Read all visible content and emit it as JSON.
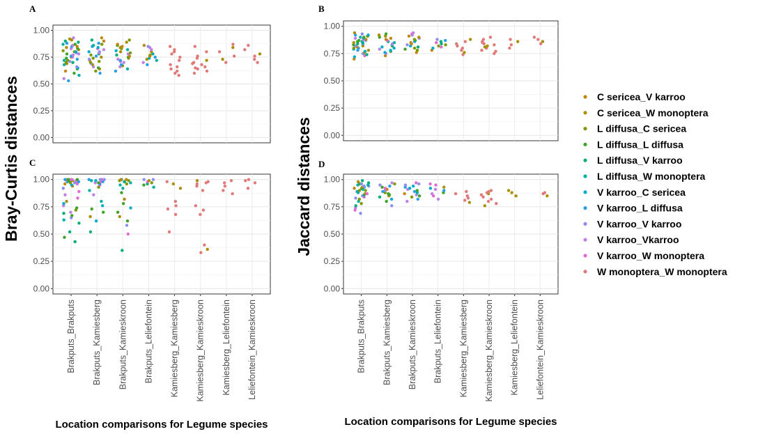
{
  "chart_data": {
    "type": "scatter",
    "style": "jitter strip plot, four panels in a 2x2 grid",
    "locations": [
      "Brakputs_Brakputs",
      "Brakputs_Kamiesberg",
      "Brakputs_Kamieskroon",
      "Brakputs_Leliefontein",
      "Kamiesberg_Kamiesberg",
      "Kamiesberg_Kamieskroon",
      "Kamiesberg_Leliefontein",
      "Leliefontein_Kamieskroon"
    ],
    "y_ticks": [
      "0.00",
      "0.25",
      "0.50",
      "0.75",
      "1.00"
    ],
    "ylim": [
      0,
      1
    ],
    "xlabel_left": "Location comparisons for Legume species",
    "xlabel_right": "Location comparisons for Legume species",
    "ylabel_left": "Bray-Curtis distances",
    "ylabel_right": "Jaccard distances",
    "legend": [
      {
        "label": "C sericea_V karroo",
        "color": "#C0860D"
      },
      {
        "label": "C sericea_W monoptera",
        "color": "#A98E00"
      },
      {
        "label": "L diffusa_C sericea",
        "color": "#7D9A00"
      },
      {
        "label": "L diffusa_L diffusa",
        "color": "#3DA329"
      },
      {
        "label": "L diffusa_V karroo",
        "color": "#00AD78"
      },
      {
        "label": "L diffusa_W monoptera",
        "color": "#00AFA5"
      },
      {
        "label": "V karroo_C sericea",
        "color": "#00ACCB"
      },
      {
        "label": "V karroo_L diffusa",
        "color": "#2B9FE6"
      },
      {
        "label": "V karroo_V karroo",
        "color": "#8C8FF0"
      },
      {
        "label": "V karroo_Vkarroo",
        "color": "#C27FE6"
      },
      {
        "label": "V karroo_W monoptera",
        "color": "#E06BD0"
      },
      {
        "label": "W monoptera_W monoptera",
        "color": "#E07A78"
      }
    ],
    "panels": [
      {
        "id": "A",
        "metric": "Bray-Curtis",
        "groups": [
          {
            "location": "Brakputs_Brakputs",
            "values": [
              0.53,
              0.55,
              0.58,
              0.6,
              0.62,
              0.64,
              0.65,
              0.66,
              0.68,
              0.69,
              0.7,
              0.7,
              0.71,
              0.72,
              0.72,
              0.73,
              0.74,
              0.75,
              0.75,
              0.76,
              0.77,
              0.78,
              0.78,
              0.79,
              0.8,
              0.8,
              0.81,
              0.82,
              0.83,
              0.83,
              0.84,
              0.85,
              0.85,
              0.86,
              0.87,
              0.87,
              0.88,
              0.89,
              0.9,
              0.91,
              0.92,
              0.93
            ]
          },
          {
            "location": "Brakputs_Kamiesberg",
            "values": [
              0.6,
              0.62,
              0.64,
              0.65,
              0.66,
              0.68,
              0.69,
              0.7,
              0.71,
              0.72,
              0.73,
              0.74,
              0.75,
              0.76,
              0.77,
              0.78,
              0.79,
              0.8,
              0.8,
              0.82,
              0.83,
              0.84,
              0.85,
              0.86,
              0.87,
              0.88,
              0.9,
              0.91,
              0.93
            ]
          },
          {
            "location": "Brakputs_Kamieskroon",
            "values": [
              0.62,
              0.64,
              0.66,
              0.67,
              0.68,
              0.7,
              0.71,
              0.72,
              0.73,
              0.74,
              0.75,
              0.76,
              0.77,
              0.78,
              0.79,
              0.8,
              0.81,
              0.82,
              0.83,
              0.84,
              0.85,
              0.86,
              0.87,
              0.89,
              0.91
            ]
          },
          {
            "location": "Brakputs_Leliefontein",
            "values": [
              0.68,
              0.7,
              0.72,
              0.73,
              0.74,
              0.75,
              0.76,
              0.77,
              0.78,
              0.8,
              0.82,
              0.84,
              0.85,
              0.86
            ]
          },
          {
            "location": "Kamiesberg_Kamiesberg",
            "values": [
              0.58,
              0.6,
              0.62,
              0.64,
              0.66,
              0.68,
              0.72,
              0.75,
              0.78,
              0.8,
              0.82,
              0.85
            ]
          },
          {
            "location": "Kamiesberg_Kamieskroon",
            "values": [
              0.6,
              0.62,
              0.64,
              0.65,
              0.66,
              0.68,
              0.69,
              0.7,
              0.72,
              0.74,
              0.76,
              0.8,
              0.85
            ]
          },
          {
            "location": "Kamiesberg_Leliefontein",
            "values": [
              0.7,
              0.73,
              0.76,
              0.8,
              0.84,
              0.87
            ]
          },
          {
            "location": "Leliefontein_Kamieskroon",
            "values": [
              0.7,
              0.73,
              0.76,
              0.78,
              0.82,
              0.86
            ]
          }
        ]
      },
      {
        "id": "B",
        "metric": "Jaccard",
        "groups": [
          {
            "location": "Brakputs_Brakputs",
            "values": [
              0.7,
              0.72,
              0.73,
              0.74,
              0.75,
              0.76,
              0.77,
              0.78,
              0.78,
              0.79,
              0.8,
              0.8,
              0.81,
              0.82,
              0.82,
              0.83,
              0.84,
              0.84,
              0.85,
              0.85,
              0.86,
              0.86,
              0.87,
              0.87,
              0.88,
              0.88,
              0.89,
              0.89,
              0.9,
              0.9,
              0.91,
              0.91,
              0.92,
              0.92,
              0.93,
              0.94
            ]
          },
          {
            "location": "Brakputs_Kamiesberg",
            "values": [
              0.73,
              0.75,
              0.76,
              0.77,
              0.78,
              0.79,
              0.8,
              0.81,
              0.82,
              0.83,
              0.84,
              0.85,
              0.86,
              0.87,
              0.88,
              0.89,
              0.9,
              0.91,
              0.92,
              0.93
            ]
          },
          {
            "location": "Brakputs_Kamieskroon",
            "values": [
              0.76,
              0.78,
              0.79,
              0.8,
              0.81,
              0.82,
              0.83,
              0.84,
              0.85,
              0.86,
              0.87,
              0.88,
              0.89,
              0.9,
              0.91,
              0.92,
              0.93,
              0.94
            ]
          },
          {
            "location": "Brakputs_Leliefontein",
            "values": [
              0.78,
              0.8,
              0.81,
              0.82,
              0.83,
              0.84,
              0.85,
              0.86,
              0.87,
              0.88
            ]
          },
          {
            "location": "Kamiesberg_Kamiesberg",
            "values": [
              0.74,
              0.76,
              0.78,
              0.8,
              0.82,
              0.84,
              0.86,
              0.88
            ]
          },
          {
            "location": "Kamiesberg_Kamieskroon",
            "values": [
              0.75,
              0.77,
              0.78,
              0.8,
              0.81,
              0.82,
              0.83,
              0.84,
              0.85,
              0.86,
              0.88,
              0.9
            ]
          },
          {
            "location": "Kamiesberg_Leliefontein",
            "values": [
              0.8,
              0.83,
              0.86,
              0.88
            ]
          },
          {
            "location": "Leliefontein_Kamieskroon",
            "values": [
              0.84,
              0.86,
              0.88,
              0.9
            ]
          }
        ]
      },
      {
        "id": "C",
        "metric": "Bray-Curtis",
        "groups": [
          {
            "location": "Brakputs_Brakputs",
            "values": [
              0.43,
              0.47,
              0.52,
              0.6,
              0.63,
              0.65,
              0.67,
              0.69,
              0.7,
              0.72,
              0.74,
              0.76,
              0.78,
              0.8,
              0.83,
              0.86,
              0.89,
              0.92,
              0.94,
              0.95,
              0.96,
              0.96,
              0.97,
              0.97,
              0.97,
              0.98,
              0.98,
              0.98,
              0.98,
              0.99,
              0.99,
              0.99,
              0.99,
              1.0,
              1.0,
              1.0,
              1.0,
              1.0,
              1.0,
              1.0
            ]
          },
          {
            "location": "Brakputs_Kamiesberg",
            "values": [
              0.52,
              0.62,
              0.66,
              0.7,
              0.73,
              0.76,
              0.8,
              0.86,
              0.9,
              0.93,
              0.95,
              0.96,
              0.97,
              0.97,
              0.98,
              0.98,
              0.99,
              0.99,
              1.0,
              1.0,
              1.0,
              1.0
            ]
          },
          {
            "location": "Brakputs_Kamieskroon",
            "values": [
              0.35,
              0.5,
              0.58,
              0.62,
              0.66,
              0.7,
              0.74,
              0.78,
              0.82,
              0.88,
              0.92,
              0.95,
              0.96,
              0.97,
              0.98,
              0.98,
              0.99,
              0.99,
              1.0,
              1.0,
              1.0
            ]
          },
          {
            "location": "Brakputs_Leliefontein",
            "values": [
              0.93,
              0.95,
              0.96,
              0.97,
              0.98,
              0.99,
              1.0,
              1.0
            ]
          },
          {
            "location": "Kamiesberg_Kamiesberg",
            "values": [
              0.52,
              0.68,
              0.73,
              0.76,
              0.8,
              0.92,
              0.96,
              0.98
            ]
          },
          {
            "location": "Kamiesberg_Kamieskroon",
            "values": [
              0.33,
              0.36,
              0.4,
              0.68,
              0.72,
              0.76,
              0.9,
              0.94,
              0.96,
              0.97,
              0.98,
              0.99
            ]
          },
          {
            "location": "Kamiesberg_Leliefontein",
            "values": [
              0.87,
              0.9,
              0.94,
              0.97,
              0.99
            ]
          },
          {
            "location": "Leliefontein_Kamieskroon",
            "values": [
              0.92,
              0.97,
              0.99,
              1.0
            ]
          }
        ]
      },
      {
        "id": "D",
        "metric": "Jaccard",
        "groups": [
          {
            "location": "Brakputs_Brakputs",
            "values": [
              0.69,
              0.72,
              0.74,
              0.76,
              0.78,
              0.8,
              0.82,
              0.83,
              0.84,
              0.85,
              0.86,
              0.87,
              0.87,
              0.88,
              0.89,
              0.89,
              0.9,
              0.9,
              0.91,
              0.92,
              0.92,
              0.93,
              0.93,
              0.94,
              0.94,
              0.95,
              0.95,
              0.96,
              0.96,
              0.97,
              0.98,
              0.99
            ]
          },
          {
            "location": "Brakputs_Kamiesberg",
            "values": [
              0.76,
              0.8,
              0.82,
              0.84,
              0.85,
              0.86,
              0.87,
              0.88,
              0.89,
              0.9,
              0.91,
              0.92,
              0.93,
              0.94,
              0.95,
              0.96,
              0.97
            ]
          },
          {
            "location": "Brakputs_Kamieskroon",
            "values": [
              0.8,
              0.82,
              0.84,
              0.85,
              0.86,
              0.87,
              0.88,
              0.89,
              0.9,
              0.91,
              0.92,
              0.93,
              0.94,
              0.95,
              0.96,
              0.97
            ]
          },
          {
            "location": "Brakputs_Leliefontein",
            "values": [
              0.82,
              0.85,
              0.87,
              0.88,
              0.9,
              0.91,
              0.92,
              0.93,
              0.95,
              0.96
            ]
          },
          {
            "location": "Kamiesberg_Kamiesberg",
            "values": [
              0.79,
              0.81,
              0.83,
              0.85,
              0.87,
              0.89
            ]
          },
          {
            "location": "Kamiesberg_Kamieskroon",
            "values": [
              0.76,
              0.78,
              0.8,
              0.82,
              0.84,
              0.86,
              0.87,
              0.88,
              0.89,
              0.9
            ]
          },
          {
            "location": "Kamiesberg_Leliefontein",
            "values": [
              0.85,
              0.88,
              0.9
            ]
          },
          {
            "location": "Leliefontein_Kamieskroon",
            "values": [
              0.85,
              0.87,
              0.88
            ]
          }
        ]
      }
    ]
  }
}
